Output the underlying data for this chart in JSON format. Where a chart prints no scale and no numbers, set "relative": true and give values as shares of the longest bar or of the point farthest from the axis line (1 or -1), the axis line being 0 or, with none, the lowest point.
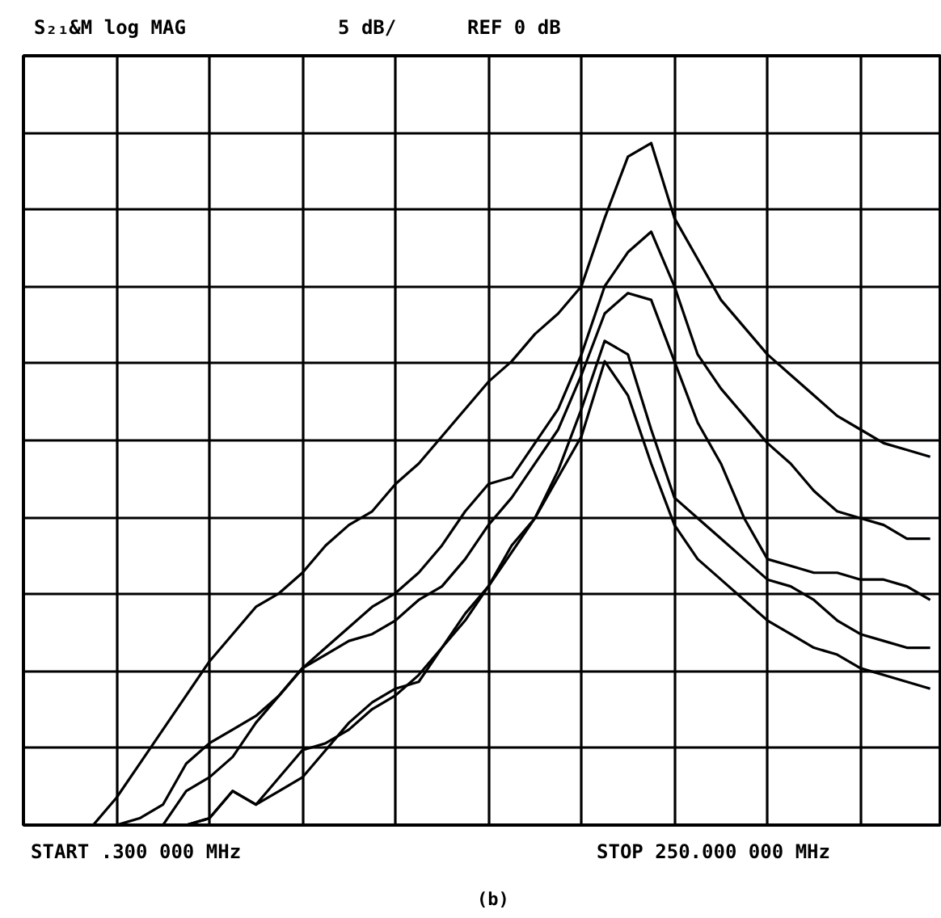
{
  "chart_data": {
    "type": "line",
    "title": "S₂₁&M log MAG",
    "relative": true,
    "annotations": [
      "5 dB/",
      "REF 0 dB",
      "START .300 000 MHz",
      "STOP 250.000 000 MHz",
      "(b)"
    ],
    "categories": [
      null,
      null,
      null,
      null,
      null,
      null,
      null,
      null,
      null,
      null,
      null,
      null,
      null,
      null,
      null,
      null,
      null,
      null,
      null,
      null,
      null,
      null,
      null,
      null,
      null,
      null,
      null,
      null,
      null,
      null,
      null,
      null,
      null,
      null,
      null,
      null,
      null,
      null,
      null,
      null
    ],
    "tick_labels": false,
    "grid": true,
    "line_style": "solid",
    "series": [
      {
        "color": "#000000",
        "values": [
          0,
          0,
          0,
          0,
          0.04,
          0.09,
          0.14,
          0.19,
          0.24,
          0.28,
          0.32,
          0.34,
          0.37,
          0.41,
          0.44,
          0.46,
          0.5,
          0.53,
          0.57,
          0.61,
          0.65,
          0.68,
          0.72,
          0.75,
          0.79,
          0.89,
          0.98,
          1.0,
          0.89,
          0.83,
          0.77,
          0.73,
          0.69,
          0.66,
          0.63,
          0.6,
          0.58,
          0.56,
          0.55,
          0.54
        ]
      },
      {
        "color": "#000000",
        "values": [
          0,
          0,
          0,
          0,
          0,
          0.01,
          0.03,
          0.09,
          0.12,
          0.14,
          0.16,
          0.19,
          0.23,
          0.26,
          0.29,
          0.32,
          0.34,
          0.37,
          0.41,
          0.46,
          0.5,
          0.51,
          0.56,
          0.61,
          0.69,
          0.79,
          0.84,
          0.87,
          0.79,
          0.69,
          0.64,
          0.6,
          0.56,
          0.53,
          0.49,
          0.46,
          0.45,
          0.44,
          0.42,
          0.42
        ]
      },
      {
        "color": "#000000",
        "values": [
          0,
          0,
          0,
          0,
          0,
          0,
          0,
          0.05,
          0.07,
          0.1,
          0.15,
          0.19,
          0.23,
          0.25,
          0.27,
          0.28,
          0.3,
          0.33,
          0.35,
          0.39,
          0.44,
          0.48,
          0.53,
          0.58,
          0.66,
          0.75,
          0.78,
          0.77,
          0.68,
          0.59,
          0.53,
          0.45,
          0.39,
          0.38,
          0.37,
          0.37,
          0.36,
          0.36,
          0.35,
          0.33
        ]
      },
      {
        "color": "#000000",
        "values": [
          0,
          0,
          0,
          0,
          0,
          0,
          0,
          0,
          0.01,
          0.05,
          0.03,
          0.07,
          0.11,
          0.12,
          0.14,
          0.17,
          0.19,
          0.22,
          0.26,
          0.3,
          0.35,
          0.41,
          0.45,
          0.52,
          0.61,
          0.71,
          0.69,
          0.58,
          0.48,
          0.45,
          0.42,
          0.39,
          0.36,
          0.35,
          0.33,
          0.3,
          0.28,
          0.27,
          0.26,
          0.26
        ]
      },
      {
        "color": "#000000",
        "values": [
          0,
          0,
          0,
          0,
          0,
          0,
          0,
          0,
          0.01,
          0.05,
          0.03,
          0.05,
          0.07,
          0.11,
          0.15,
          0.18,
          0.2,
          0.21,
          0.26,
          0.31,
          0.35,
          0.4,
          0.45,
          0.51,
          0.57,
          0.68,
          0.63,
          0.53,
          0.44,
          0.39,
          0.36,
          0.33,
          0.3,
          0.28,
          0.26,
          0.25,
          0.23,
          0.22,
          0.21,
          0.2
        ]
      }
    ]
  }
}
